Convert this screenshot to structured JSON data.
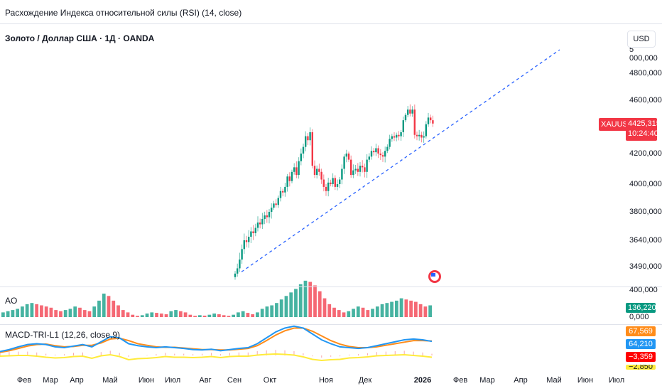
{
  "header": {
    "indicator_title": "Расхождение Индекса относительной силы (RSI) (14, close)",
    "symbol_title": "Золото / Доллар США · 1Д · OANDA",
    "currency": "USD"
  },
  "price_axis": {
    "ticks": [
      "5 000,000",
      "4800,000",
      "4600,000",
      "4200,000",
      "4000,000",
      "3800,000",
      "3640,000",
      "3490,000"
    ]
  },
  "price_tag": {
    "symbol": "XAUUSD",
    "price": "4425,315",
    "countdown": "10:24:40"
  },
  "ao": {
    "title": "AO",
    "axis_ticks": [
      "400,000",
      "0,000"
    ],
    "value": "136,220"
  },
  "macd": {
    "title": "MACD-TRI-L1 (12,26, close,9)",
    "values": [
      "67,569",
      "64,210",
      "−3,359",
      "−2,850"
    ]
  },
  "time_axis": [
    "Фев",
    "Мар",
    "Апр",
    "Май",
    "Июн",
    "Июл",
    "Авг",
    "Сен",
    "Окт",
    "Ноя",
    "Дек",
    "2026",
    "Фев",
    "Мар",
    "Апр",
    "Май",
    "Июн",
    "Июл"
  ],
  "colors": {
    "up": "#089981",
    "down": "#f23645",
    "trend": "#2962ff",
    "macd": "#ff8c1a",
    "signal": "#2196f3",
    "hist": "#ffeb3b"
  },
  "chart_data": {
    "type": "candlestick",
    "closes": [
      3450,
      3480,
      3530,
      3590,
      3640,
      3630,
      3660,
      3690,
      3680,
      3710,
      3740,
      3730,
      3760,
      3780,
      3770,
      3800,
      3830,
      3860,
      3850,
      3900,
      3950,
      3940,
      3980,
      4050,
      4020,
      4080,
      4110,
      4060,
      4150,
      4200,
      4250,
      4330,
      4300,
      4360,
      4120,
      4060,
      4100,
      4080,
      4030,
      3980,
      3950,
      4010,
      4000,
      4040,
      3980,
      4000,
      4030,
      4100,
      4180,
      4200,
      4160,
      4060,
      4090,
      4100,
      4080,
      4120,
      4110,
      4080,
      4160,
      4180,
      4220,
      4210,
      4240,
      4200,
      4190,
      4180,
      4220,
      4250,
      4310,
      4330,
      4320,
      4340,
      4330,
      4360,
      4450,
      4490,
      4530,
      4500,
      4530,
      4340,
      4330,
      4340,
      4320,
      4330,
      4420,
      4470,
      4450,
      4425
    ],
    "trendline": {
      "from": 3460,
      "to": 5000
    },
    "ao_levels": [
      20,
      25,
      30,
      35,
      45,
      55,
      60,
      55,
      50,
      45,
      40,
      30,
      25,
      30,
      35,
      45,
      40,
      30,
      25,
      45,
      70,
      100,
      90,
      70,
      50,
      30,
      20,
      10,
      5,
      8,
      15,
      20,
      18,
      15,
      12,
      25,
      30,
      25,
      20,
      10,
      5,
      8,
      6,
      10,
      15,
      12,
      8,
      5,
      10,
      20,
      25,
      18,
      12,
      20,
      35,
      45,
      50,
      60,
      75,
      90,
      105,
      120,
      140,
      155,
      150,
      135,
      110,
      80,
      55,
      40,
      30,
      20,
      25,
      35,
      45,
      40,
      30,
      35,
      45,
      55,
      60,
      65,
      70,
      80,
      75,
      70,
      65,
      55,
      45,
      50
    ],
    "macd_line": [
      10,
      15,
      22,
      28,
      30,
      28,
      22,
      20,
      24,
      28,
      22,
      35,
      48,
      45,
      30,
      25,
      22,
      20,
      22,
      20,
      18,
      15,
      14,
      16,
      12,
      15,
      18,
      20,
      30,
      45,
      60,
      70,
      75,
      70,
      55,
      40,
      30,
      22,
      20,
      18,
      20,
      25,
      30,
      35,
      40,
      42,
      40,
      36
    ],
    "signal_line": [
      8,
      12,
      18,
      24,
      28,
      29,
      25,
      22,
      23,
      26,
      26,
      32,
      42,
      44,
      38,
      30,
      26,
      22,
      21,
      21,
      19,
      17,
      15,
      15,
      14,
      14,
      16,
      18,
      25,
      38,
      52,
      63,
      70,
      70,
      62,
      50,
      38,
      29,
      23,
      20,
      20,
      22,
      26,
      30,
      34,
      38,
      38,
      37
    ]
  }
}
